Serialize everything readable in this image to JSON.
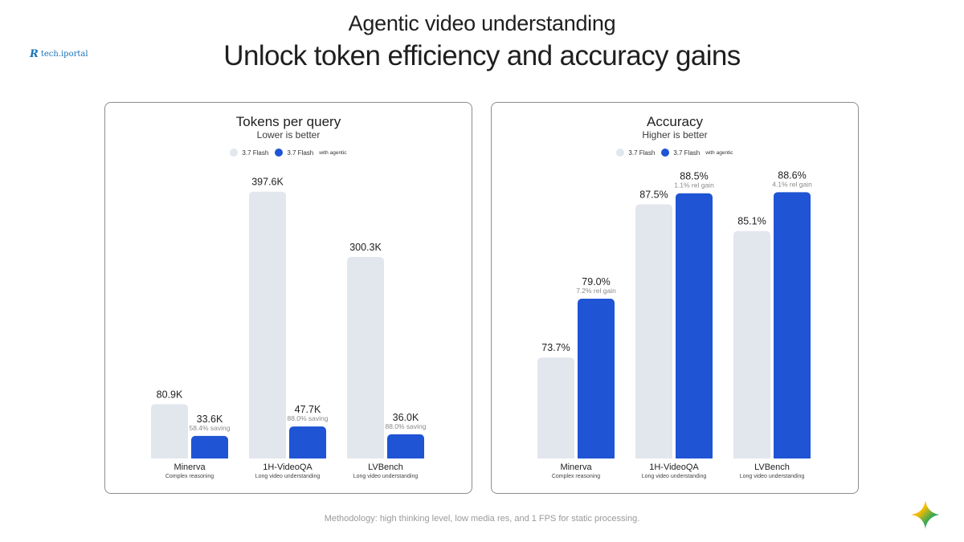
{
  "watermark": "tech.iportal",
  "header": {
    "subtitle": "Agentic video understanding",
    "title": "Unlock token efficiency and accuracy gains"
  },
  "legend": {
    "base_label": "3.7 Flash",
    "agentic_label": "3.7 Flash",
    "agentic_suffix": "with agentic"
  },
  "colors": {
    "base": "#e2e6ed",
    "agentic": "#1f54d4"
  },
  "chart_data": [
    {
      "type": "bar",
      "title": "Tokens per query",
      "note": "Lower is better",
      "categories": [
        "Minerva",
        "1H-VideoQA",
        "LVBench"
      ],
      "category_subtitles": [
        "Complex reasoning",
        "Long video understanding",
        "Long video understanding"
      ],
      "ylim": [
        0,
        420
      ],
      "series": [
        {
          "name": "3.7 Flash",
          "values": [
            80.9,
            397.6,
            300.3
          ],
          "labels": [
            "80.9K",
            "397.6K",
            "300.3K"
          ]
        },
        {
          "name": "3.7 Flash with agentic",
          "values": [
            33.6,
            47.7,
            36.0
          ],
          "labels": [
            "33.6K",
            "47.7K",
            "36.0K"
          ],
          "annotations": [
            "58.4% saving",
            "88.0% saving",
            "88.0% saving"
          ]
        }
      ]
    },
    {
      "type": "bar",
      "title": "Accuracy",
      "note": "Higher is better",
      "categories": [
        "Minerva",
        "1H-VideoQA",
        "LVBench"
      ],
      "category_subtitles": [
        "Complex reasoning",
        "Long video understanding",
        "Long video understanding"
      ],
      "ylim": [
        64.6,
        90
      ],
      "series": [
        {
          "name": "3.7 Flash",
          "values": [
            73.7,
            87.5,
            85.1
          ],
          "labels": [
            "73.7%",
            "87.5%",
            "85.1%"
          ]
        },
        {
          "name": "3.7 Flash with agentic",
          "values": [
            79.0,
            88.5,
            88.6
          ],
          "labels": [
            "79.0%",
            "88.5%",
            "88.6%"
          ],
          "annotations": [
            "7.2% rel gain",
            "1.1% rel gain",
            "4.1% rel gain"
          ]
        }
      ]
    }
  ],
  "footer": {
    "methodology": "Methodology: high thinking level, low media res, and 1 FPS for static processing."
  }
}
